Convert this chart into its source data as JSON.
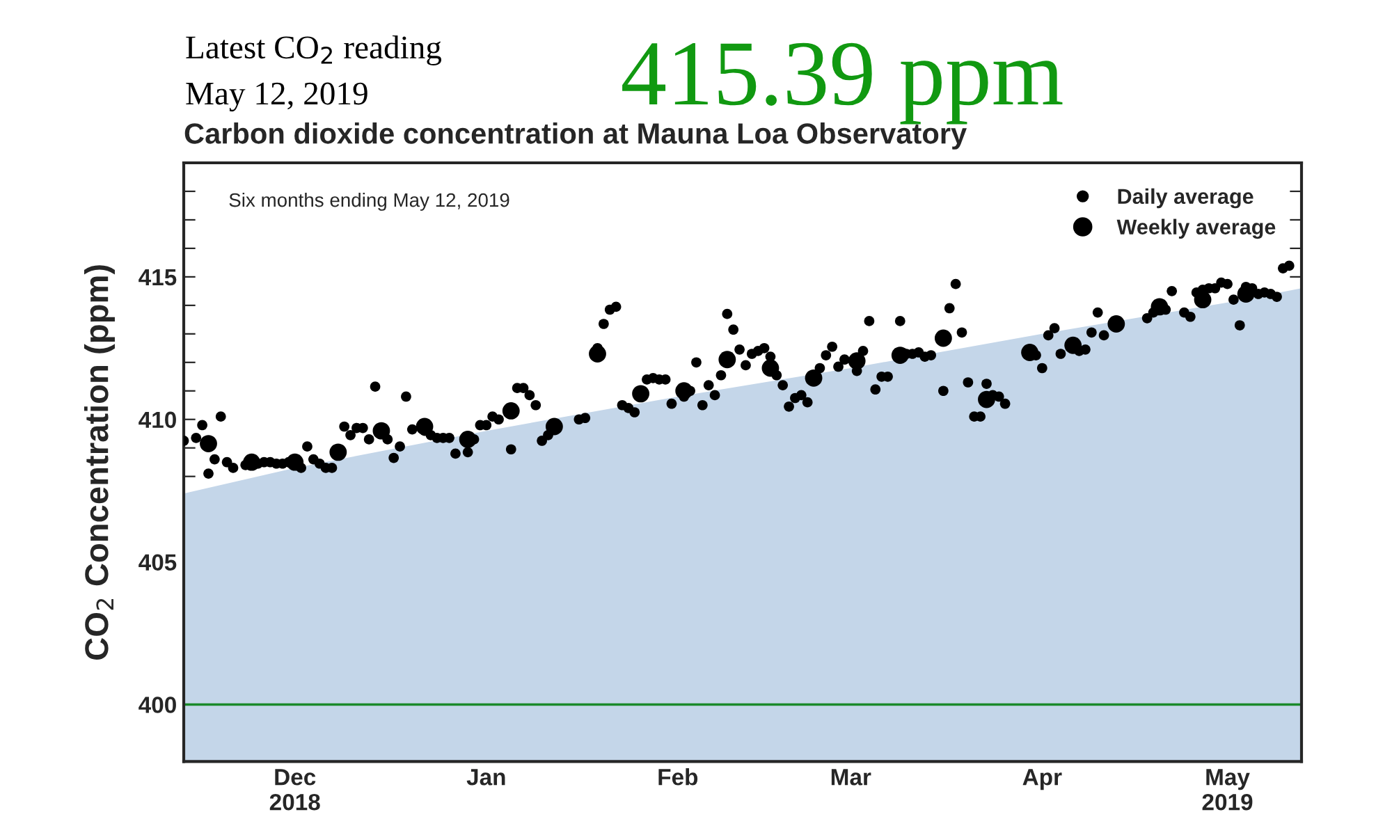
{
  "chart_data": {
    "type": "scatter",
    "title": "Carbon dioxide concentration at Mauna Loa Observatory",
    "ylabel": "CO$_{2}$ Concentration (ppm)",
    "annotations": [
      "Latest CO$_{2}$ reading",
      "May 12, 2019",
      "415.39 ppm",
      "Six months ending May 12, 2019"
    ],
    "series": [
      {
        "type": "area",
        "color": "#c4d6e9",
        "x": [
          "2018-11-13",
          "2018-12-01",
          "2019-01-01",
          "2019-02-01",
          "2019-03-01",
          "2019-04-01",
          "2019-05-01",
          "2019-05-13"
        ],
        "values": [
          407.4,
          408.3,
          409.6,
          410.8,
          411.8,
          413.0,
          414.1,
          414.6
        ]
      },
      {
        "name": "Daily average",
        "color": "#000000",
        "marker": "circle",
        "x": [
          "2018-11-13",
          "2018-11-15",
          "2018-11-16",
          "2018-11-17",
          "2018-11-18",
          "2018-11-19",
          "2018-11-20",
          "2018-11-21",
          "2018-11-23",
          "2018-11-25",
          "2018-11-26",
          "2018-11-27",
          "2018-11-28",
          "2018-11-29",
          "2018-11-30",
          "2018-12-02",
          "2018-12-03",
          "2018-12-04",
          "2018-12-05",
          "2018-12-06",
          "2018-12-07",
          "2018-12-09",
          "2018-12-10",
          "2018-12-11",
          "2018-12-12",
          "2018-12-13",
          "2018-12-14",
          "2018-12-16",
          "2018-12-17",
          "2018-12-18",
          "2018-12-19",
          "2018-12-20",
          "2018-12-22",
          "2018-12-23",
          "2018-12-24",
          "2018-12-25",
          "2018-12-26",
          "2018-12-27",
          "2018-12-29",
          "2018-12-30",
          "2018-12-31",
          "2019-01-01",
          "2019-01-02",
          "2019-01-03",
          "2019-01-05",
          "2019-01-06",
          "2019-01-07",
          "2019-01-08",
          "2019-01-09",
          "2019-01-10",
          "2019-01-11",
          "2019-01-16",
          "2019-01-17",
          "2019-01-19",
          "2019-01-20",
          "2019-01-21",
          "2019-01-22",
          "2019-01-23",
          "2019-01-24",
          "2019-01-25",
          "2019-01-27",
          "2019-01-28",
          "2019-01-29",
          "2019-01-30",
          "2019-01-31",
          "2019-02-02",
          "2019-02-03",
          "2019-02-04",
          "2019-02-05",
          "2019-02-06",
          "2019-02-07",
          "2019-02-08",
          "2019-02-09",
          "2019-02-10",
          "2019-02-11",
          "2019-02-12",
          "2019-02-13",
          "2019-02-14",
          "2019-02-15",
          "2019-02-16",
          "2019-02-17",
          "2019-02-18",
          "2019-02-19",
          "2019-02-20",
          "2019-02-21",
          "2019-02-22",
          "2019-02-24",
          "2019-02-25",
          "2019-02-26",
          "2019-02-27",
          "2019-02-28",
          "2019-03-02",
          "2019-03-03",
          "2019-03-04",
          "2019-03-05",
          "2019-03-06",
          "2019-03-07",
          "2019-03-09",
          "2019-03-10",
          "2019-03-11",
          "2019-03-12",
          "2019-03-13",
          "2019-03-14",
          "2019-03-16",
          "2019-03-17",
          "2019-03-18",
          "2019-03-19",
          "2019-03-20",
          "2019-03-21",
          "2019-03-22",
          "2019-03-23",
          "2019-03-24",
          "2019-03-25",
          "2019-03-26",
          "2019-03-31",
          "2019-04-01",
          "2019-04-02",
          "2019-04-03",
          "2019-04-04",
          "2019-04-07",
          "2019-04-08",
          "2019-04-09",
          "2019-04-10",
          "2019-04-11",
          "2019-04-18",
          "2019-04-19",
          "2019-04-21",
          "2019-04-22",
          "2019-04-24",
          "2019-04-25",
          "2019-04-26",
          "2019-04-27",
          "2019-04-28",
          "2019-04-29",
          "2019-04-30",
          "2019-05-01",
          "2019-05-02",
          "2019-05-03",
          "2019-05-04",
          "2019-05-05",
          "2019-05-06",
          "2019-05-07",
          "2019-05-08",
          "2019-05-09",
          "2019-05-10",
          "2019-05-11"
        ],
        "values": [
          409.25,
          409.35,
          409.8,
          408.1,
          408.6,
          410.1,
          408.5,
          408.3,
          408.4,
          408.45,
          408.5,
          408.5,
          408.45,
          408.45,
          408.5,
          408.3,
          409.05,
          408.6,
          408.45,
          408.3,
          408.3,
          409.75,
          409.45,
          409.7,
          409.7,
          409.3,
          411.15,
          409.3,
          408.65,
          409.05,
          410.8,
          409.65,
          409.6,
          409.45,
          409.35,
          409.35,
          409.35,
          408.8,
          408.85,
          409.3,
          409.8,
          409.8,
          410.1,
          410.0,
          408.95,
          411.1,
          411.1,
          410.85,
          410.5,
          409.25,
          409.45,
          410.0,
          410.05,
          412.5,
          413.35,
          413.85,
          413.95,
          410.5,
          410.4,
          410.25,
          411.4,
          411.45,
          411.4,
          411.4,
          410.55,
          410.8,
          411.0,
          412.0,
          410.5,
          411.2,
          410.85,
          411.55,
          413.7,
          413.15,
          412.45,
          411.9,
          412.3,
          412.4,
          412.5,
          412.2,
          411.55,
          411.2,
          410.45,
          410.75,
          410.85,
          410.6,
          411.8,
          412.25,
          412.55,
          411.85,
          412.1,
          411.7,
          412.4,
          413.45,
          411.05,
          411.5,
          411.5,
          413.45,
          412.3,
          412.3,
          412.35,
          412.2,
          412.25,
          411.0,
          413.9,
          414.75,
          413.05,
          411.3,
          410.1,
          410.1,
          411.25,
          410.85,
          410.8,
          410.55,
          412.25,
          411.8,
          412.95,
          413.2,
          412.3,
          412.4,
          412.45,
          413.05,
          413.75,
          412.95,
          413.55,
          413.75,
          413.85,
          414.5,
          413.75,
          413.6,
          414.45,
          414.55,
          414.6,
          414.6,
          414.8,
          414.75,
          414.2,
          413.3,
          414.65,
          414.6,
          414.4,
          414.45,
          414.4,
          414.3,
          415.3,
          415.39
        ]
      },
      {
        "name": "Weekly average",
        "color": "#000000",
        "marker": "circle",
        "x": [
          "2018-11-17",
          "2018-11-24",
          "2018-12-01",
          "2018-12-08",
          "2018-12-15",
          "2018-12-22",
          "2018-12-29",
          "2019-01-05",
          "2019-01-12",
          "2019-01-19",
          "2019-01-26",
          "2019-02-02",
          "2019-02-09",
          "2019-02-16",
          "2019-02-23",
          "2019-03-02",
          "2019-03-09",
          "2019-03-16",
          "2019-03-23",
          "2019-03-30",
          "2019-04-06",
          "2019-04-13",
          "2019-04-20",
          "2019-04-27",
          "2019-05-04"
        ],
        "values": [
          409.15,
          408.5,
          408.5,
          408.85,
          409.6,
          409.75,
          409.3,
          410.3,
          409.75,
          412.3,
          410.9,
          411.0,
          412.1,
          411.8,
          411.45,
          412.05,
          412.25,
          412.85,
          410.7,
          412.35,
          412.6,
          413.35,
          413.95,
          414.2,
          414.4
        ]
      }
    ],
    "xlim": [
      "2018-11-13",
      "2019-05-13"
    ],
    "xticks": [
      {
        "value": "2018-12-01",
        "label": "Dec\n2018"
      },
      {
        "value": "2019-01-01",
        "label": "Jan"
      },
      {
        "value": "2019-02-01",
        "label": "Feb"
      },
      {
        "value": "2019-03-01",
        "label": "Mar"
      },
      {
        "value": "2019-04-01",
        "label": "Apr"
      },
      {
        "value": "2019-05-01",
        "label": "May\n2019"
      }
    ],
    "ylim": [
      398,
      419
    ],
    "yticks": [
      {
        "value": 398,
        "label": null
      },
      {
        "value": 399,
        "label": null
      },
      400,
      {
        "value": 401,
        "label": null
      },
      {
        "value": 402,
        "label": null
      },
      {
        "value": 403,
        "label": null
      },
      {
        "value": 404,
        "label": null
      },
      405,
      {
        "value": 406,
        "label": null
      },
      {
        "value": 407,
        "label": null
      },
      {
        "value": 408,
        "label": null
      },
      {
        "value": 409,
        "label": null
      },
      410,
      {
        "value": 411,
        "label": null
      },
      {
        "value": 412,
        "label": null
      },
      {
        "value": 413,
        "label": null
      },
      {
        "value": 414,
        "label": null
      },
      415,
      {
        "value": 416,
        "label": null
      },
      {
        "value": 417,
        "label": null
      },
      {
        "value": 418,
        "label": null
      },
      {
        "value": 419,
        "label": null
      }
    ],
    "ref_lines": [
      {
        "axis": "y",
        "value": 400,
        "color": "#1a8a2a"
      }
    ],
    "grid": false,
    "legend": "top right"
  }
}
